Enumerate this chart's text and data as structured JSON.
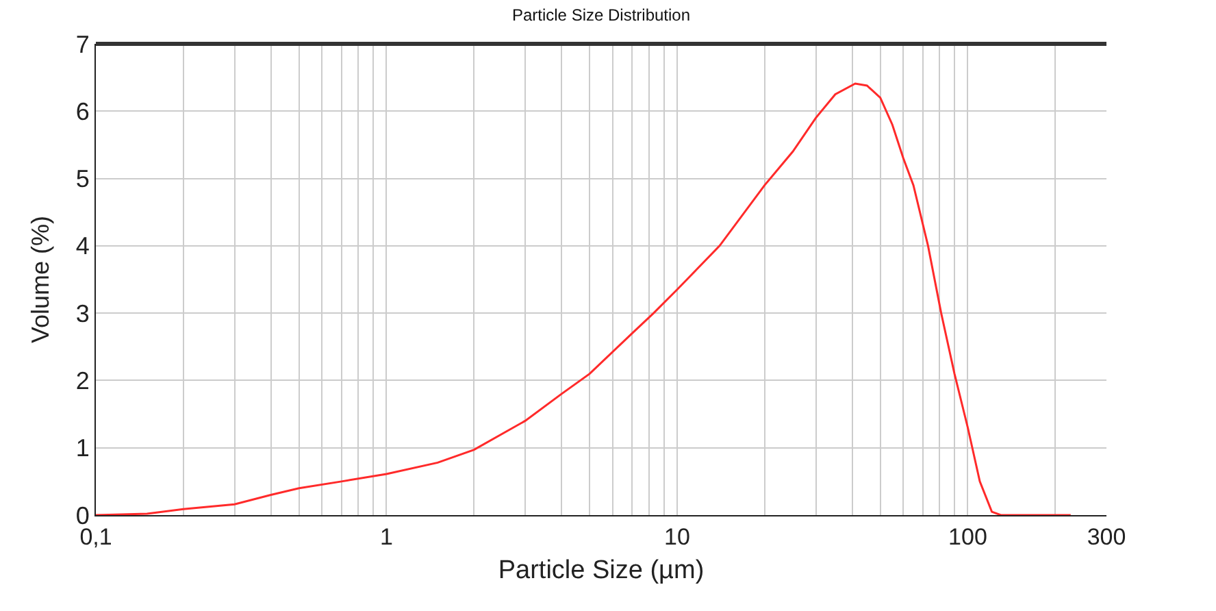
{
  "chart_data": {
    "type": "line",
    "title": "Particle Size Distribution",
    "xlabel": "Particle Size (µm)",
    "ylabel": "Volume (%)",
    "log": "x",
    "grid": true,
    "marker": "none",
    "line_style": "solid",
    "xlim": [
      0.1,
      300
    ],
    "ylim": [
      0,
      7
    ],
    "xticks": [
      {
        "value": 0.1,
        "label": "0,1"
      },
      {
        "value": 0.2,
        "label": null
      },
      {
        "value": 0.3,
        "label": null
      },
      {
        "value": 0.4,
        "label": null
      },
      {
        "value": 0.5,
        "label": null
      },
      {
        "value": 0.6,
        "label": null
      },
      {
        "value": 0.7,
        "label": null
      },
      {
        "value": 0.8,
        "label": null
      },
      {
        "value": 0.9,
        "label": null
      },
      1,
      {
        "value": 2,
        "label": null
      },
      {
        "value": 3,
        "label": null
      },
      {
        "value": 4,
        "label": null
      },
      {
        "value": 5,
        "label": null
      },
      {
        "value": 6,
        "label": null
      },
      {
        "value": 7,
        "label": null
      },
      {
        "value": 8,
        "label": null
      },
      {
        "value": 9,
        "label": null
      },
      10,
      {
        "value": 20,
        "label": null
      },
      {
        "value": 30,
        "label": null
      },
      {
        "value": 40,
        "label": null
      },
      {
        "value": 50,
        "label": null
      },
      {
        "value": 60,
        "label": null
      },
      {
        "value": 70,
        "label": null
      },
      {
        "value": 80,
        "label": null
      },
      {
        "value": 90,
        "label": null
      },
      100,
      {
        "value": 200,
        "label": null
      },
      300
    ],
    "yticks": [
      0,
      1,
      2,
      3,
      4,
      5,
      6,
      7
    ],
    "x": [
      0.1,
      0.15,
      0.2,
      0.3,
      0.4,
      0.5,
      0.7,
      1,
      1.5,
      2,
      3,
      4,
      5,
      7,
      8.3,
      10,
      14,
      20,
      25,
      30,
      35,
      41,
      45,
      50,
      55,
      60,
      65,
      73,
      81,
      90,
      100,
      110,
      121,
      130,
      160,
      226
    ],
    "series": [
      {
        "color": "#ff2a2a",
        "values": [
          0,
          0.02,
          0.09,
          0.16,
          0.3,
          0.4,
          0.5,
          0.61,
          0.78,
          0.97,
          1.4,
          1.8,
          2.1,
          2.7,
          3.0,
          3.35,
          4.0,
          4.9,
          5.4,
          5.9,
          6.25,
          6.41,
          6.38,
          6.2,
          5.8,
          5.3,
          4.9,
          4.0,
          3.0,
          2.1,
          1.3,
          0.5,
          0.05,
          0,
          0,
          0
        ]
      }
    ]
  }
}
